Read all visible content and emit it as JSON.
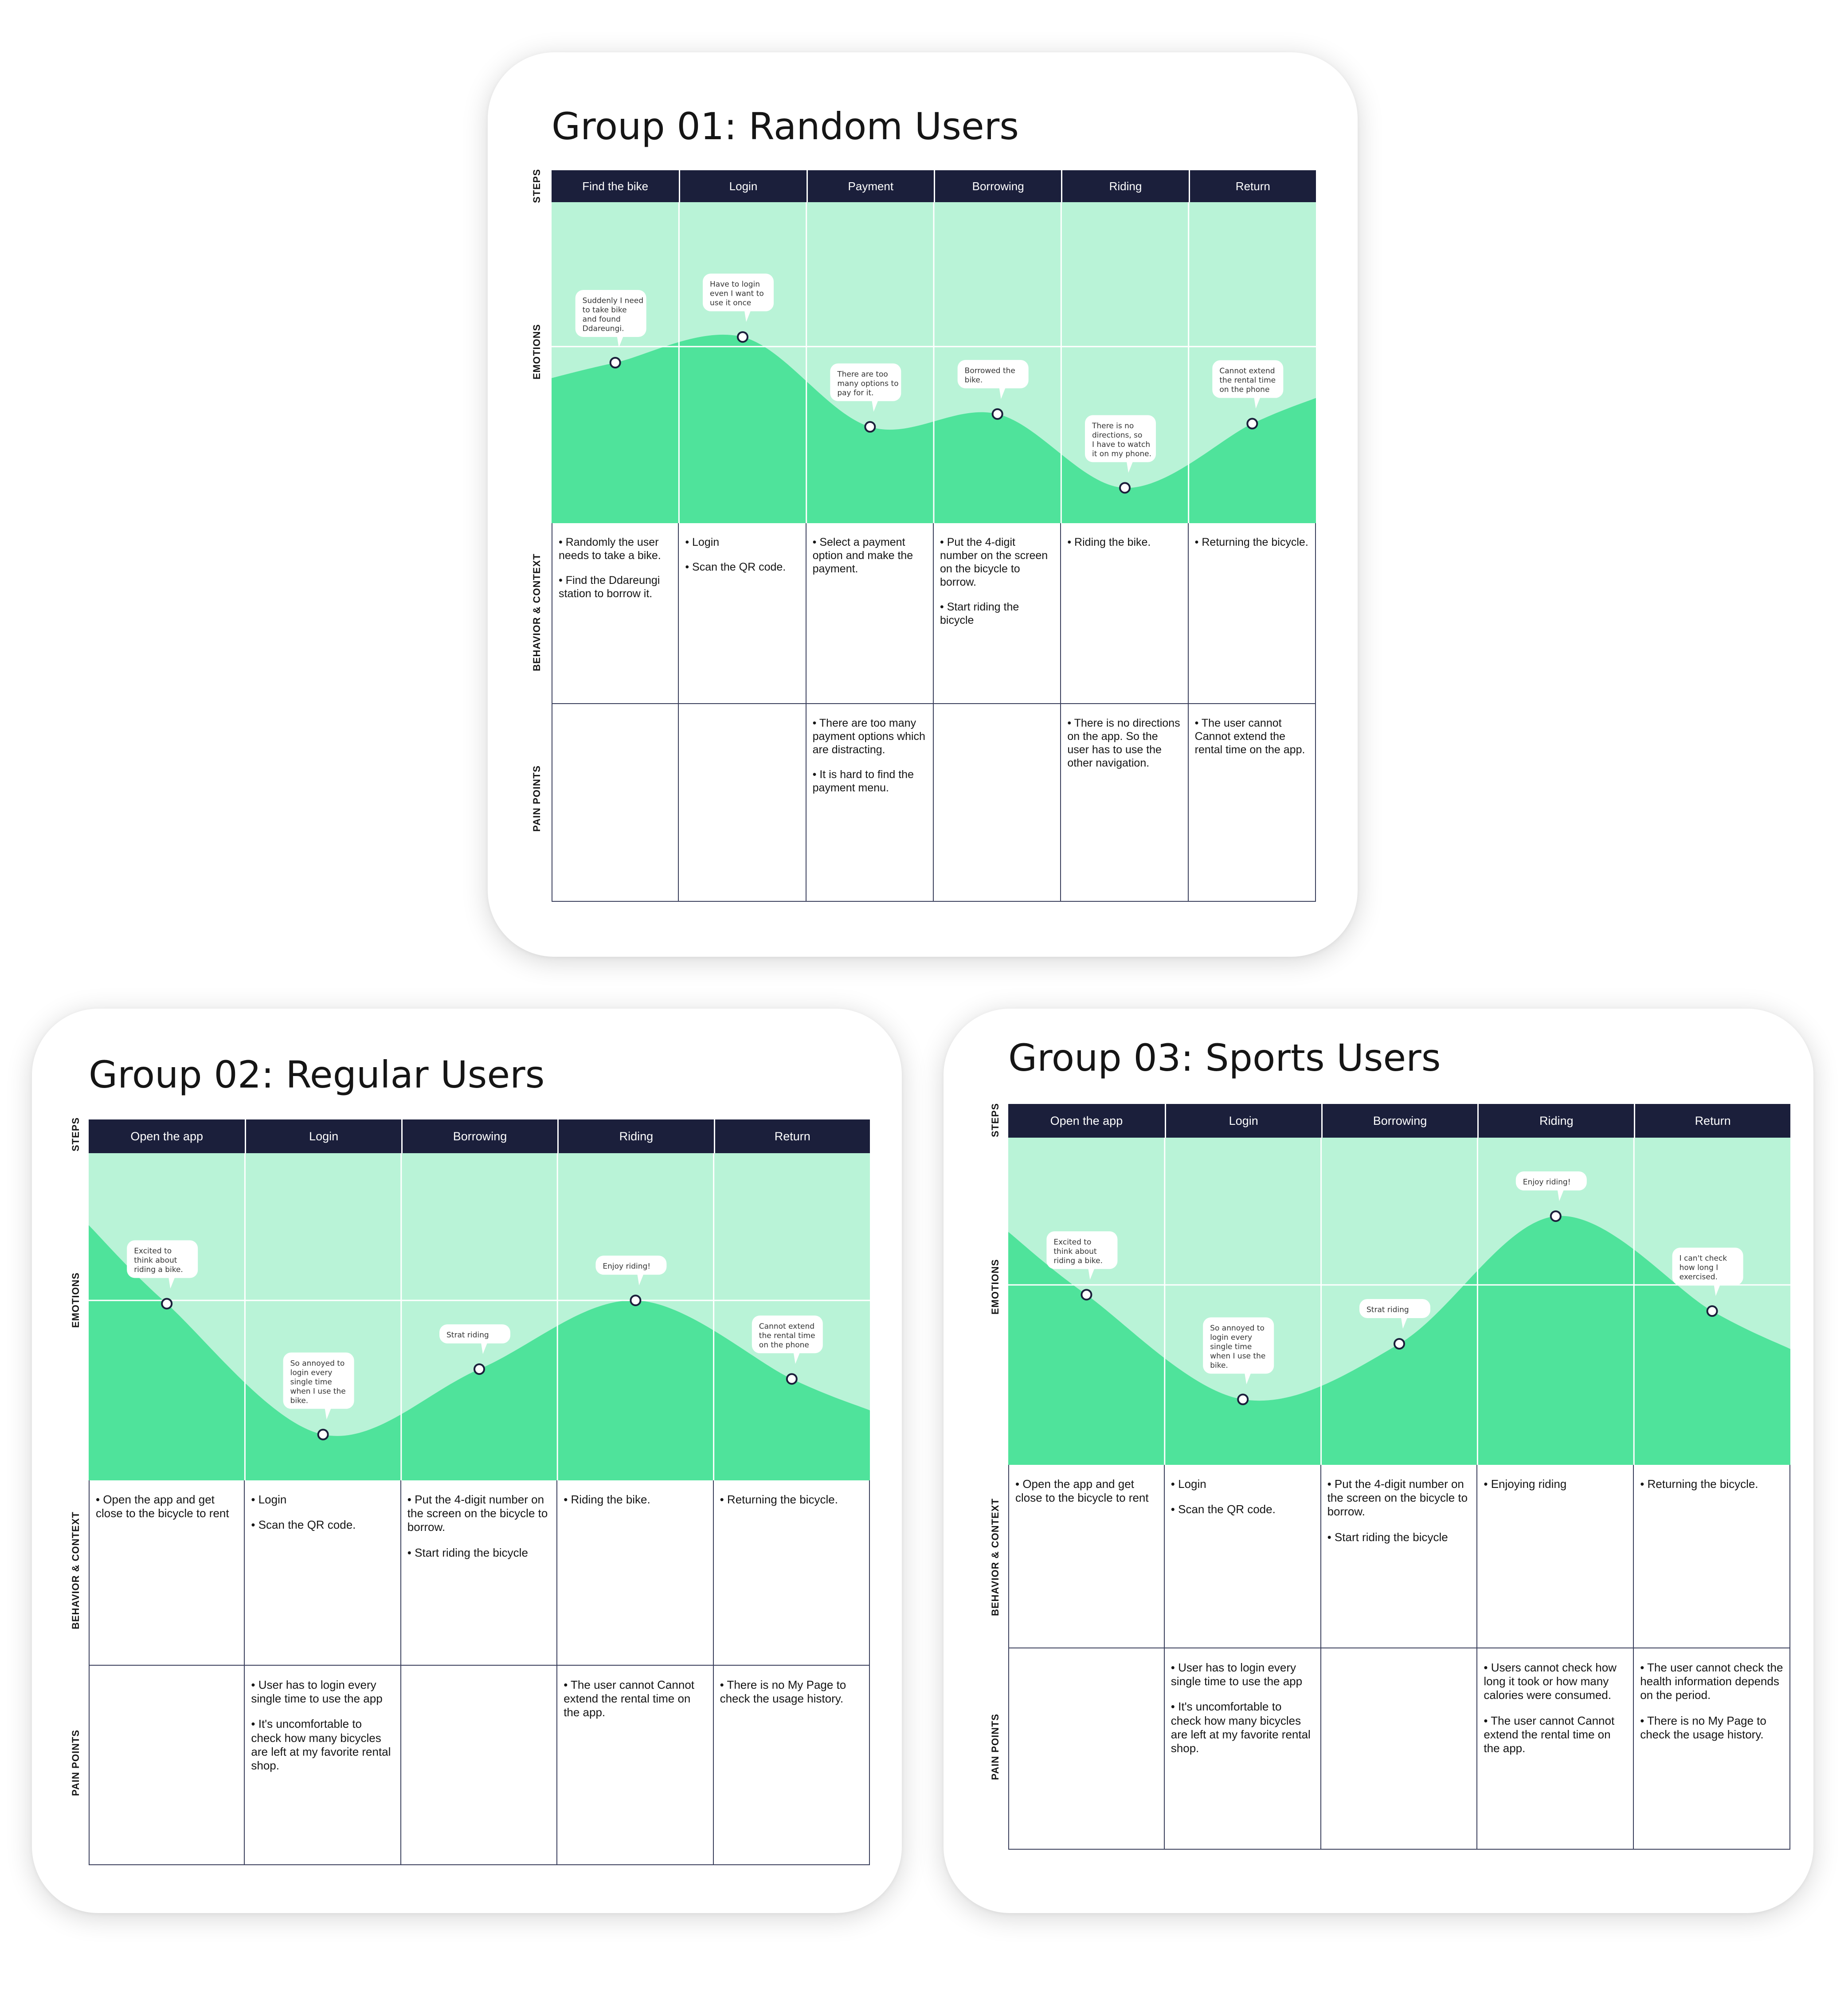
{
  "row_labels": {
    "steps": "STEPS",
    "emotions": "EMOTIONS",
    "behavior": "BEHAVIOR & CONTEXT",
    "pain": "PAIN POINTS"
  },
  "colors": {
    "header_bg": "#1b1f3b",
    "emotion_bg": "#b9f3d7",
    "emotion_fill": "#4fe39b",
    "grid_line": "#ffffff",
    "table_line": "#3a3f5c"
  },
  "groups": [
    {
      "title": "Group 01: Random Users",
      "steps": [
        "Find the bike",
        "Login",
        "Payment",
        "Borrowing",
        "Riding",
        "Return"
      ],
      "emotion_points": [
        0.5,
        0.42,
        0.7,
        0.66,
        0.89,
        0.69
      ],
      "bubbles": [
        "Suddenly I need to take bike and found Ddareungi.",
        "Have to login even I want to use it once",
        "There are too many options to pay for it.",
        "Borrowed the bike.",
        "There is no directions, so I have to watch it on my phone.",
        "Cannot extend the rental time on the phone"
      ],
      "behavior": [
        [
          "Randomly the user needs to take a bike.",
          "Find the Ddareungi station to borrow it."
        ],
        [
          "Login",
          "Scan the QR code."
        ],
        [
          "Select a payment option and make the payment."
        ],
        [
          "Put the 4-digit number on the screen on the bicycle to borrow.",
          "Start riding the bicycle"
        ],
        [
          "Riding the bike."
        ],
        [
          "Returning the bicycle."
        ]
      ],
      "pain": [
        [],
        [],
        [
          "There are too many payment options which are distracting.",
          "It is hard to find the payment menu."
        ],
        [],
        [
          "There is no directions on the app. So the user has to use the other navigation."
        ],
        [
          "The user cannot Cannot extend the rental time on the app."
        ]
      ]
    },
    {
      "title": "Group 02: Regular Users",
      "steps": [
        "Open the app",
        "Login",
        "Borrowing",
        "Riding",
        "Return"
      ],
      "emotion_points": [
        0.46,
        0.86,
        0.66,
        0.45,
        0.69
      ],
      "bubbles": [
        "Excited to think about riding a bike.",
        "So annoyed to login every single time when I use the bike.",
        "Strat riding",
        "Enjoy riding!",
        "Cannot extend the rental time on the phone"
      ],
      "behavior": [
        [
          "Open the app and get close to the bicycle to rent"
        ],
        [
          "Login",
          "Scan the QR code."
        ],
        [
          "Put the 4-digit number on the screen on the bicycle to borrow.",
          "Start riding the bicycle"
        ],
        [
          "Riding the bike."
        ],
        [
          "Returning the bicycle."
        ]
      ],
      "pain": [
        [],
        [
          "User has to login every single time to use the app",
          "It's uncomfortable to check how many bicycles are left at my favorite rental shop."
        ],
        [],
        [
          "The user cannot Cannot extend the rental time on the app."
        ],
        [
          "There is no My Page to check the usage history."
        ]
      ]
    },
    {
      "title": "Group 03: Sports Users",
      "steps": [
        "Open the app",
        "Login",
        "Borrowing",
        "Riding",
        "Return"
      ],
      "emotion_points": [
        0.48,
        0.8,
        0.63,
        0.24,
        0.53
      ],
      "bubbles": [
        "Excited to think about riding a bike.",
        "So annoyed to login every single time when I use the bike.",
        "Strat riding",
        "Enjoy riding!",
        "I can't check how long I exercised."
      ],
      "behavior": [
        [
          "Open the app and get close to the bicycle to rent"
        ],
        [
          "Login",
          "Scan the QR code."
        ],
        [
          "Put the 4-digit number on the screen on the bicycle to borrow.",
          "Start riding the bicycle"
        ],
        [
          "Enjoying riding"
        ],
        [
          "Returning the bicycle."
        ]
      ],
      "pain": [
        [],
        [
          "User has to login every single time to use the app",
          "It's uncomfortable to check how many bicycles are left at my favorite rental shop."
        ],
        [],
        [
          "Users cannot check how long it took or how many calories were consumed.",
          "The user cannot Cannot extend the rental time on the app."
        ],
        [
          "The user cannot check the health information depends on the period.",
          "There is no My Page to check the usage history."
        ]
      ]
    }
  ]
}
